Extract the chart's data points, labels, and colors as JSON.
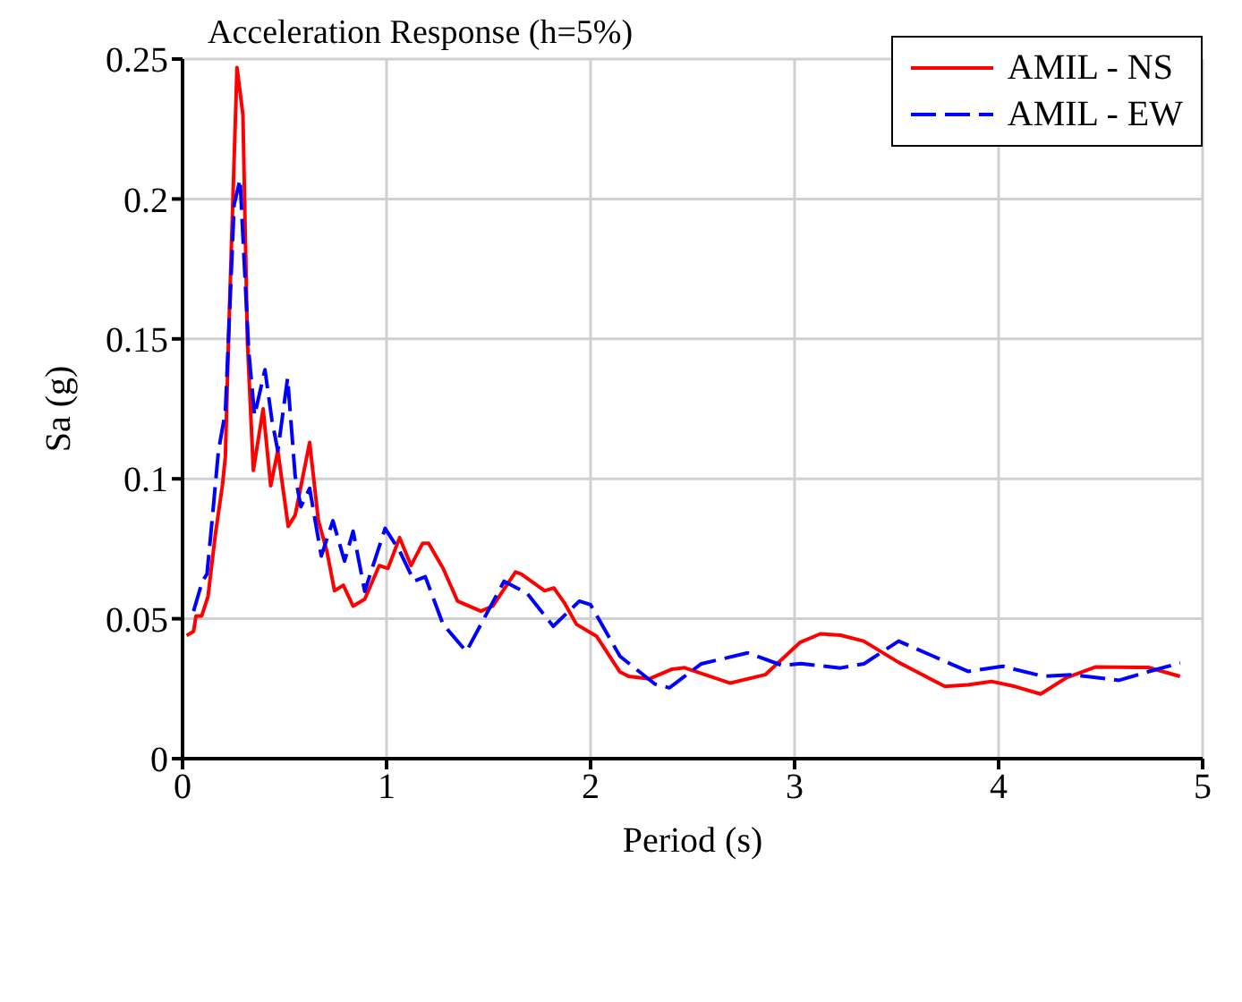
{
  "chart_data": {
    "type": "line",
    "title": "Acceleration Response (h=5%)",
    "xlabel": "Period (s)",
    "ylabel": "Sa (g)",
    "xlim": [
      0,
      5
    ],
    "xticks": [
      0,
      1,
      2,
      3,
      4,
      5
    ],
    "ylim": [
      0,
      0.25
    ],
    "yticks": [
      0,
      0.05,
      0.1,
      0.15,
      0.2,
      0.25
    ],
    "grid": true,
    "legend": "top right",
    "marker": "none",
    "series": [
      {
        "name": "AMIL - NS",
        "color": "#ff0000",
        "line_style": "solid",
        "x": [
          0.02,
          0.054,
          0.066,
          0.094,
          0.125,
          0.16,
          0.196,
          0.21,
          0.225,
          0.267,
          0.296,
          0.318,
          0.347,
          0.395,
          0.432,
          0.467,
          0.518,
          0.552,
          0.623,
          0.666,
          0.708,
          0.745,
          0.788,
          0.836,
          0.893,
          0.964,
          1.007,
          1.064,
          1.12,
          1.177,
          1.206,
          1.277,
          1.348,
          1.462,
          1.52,
          1.632,
          1.66,
          1.775,
          1.82,
          1.874,
          1.931,
          2.03,
          2.144,
          2.187,
          2.287,
          2.4,
          2.46,
          2.685,
          2.856,
          3.026,
          3.126,
          3.225,
          3.339,
          3.51,
          3.737,
          3.85,
          3.965,
          4.08,
          4.206,
          4.334,
          4.477,
          4.733,
          4.889
        ],
        "values": [
          0.044,
          0.0455,
          0.051,
          0.051,
          0.058,
          0.0796,
          0.098,
          0.108,
          0.149,
          0.247,
          0.23,
          0.149,
          0.103,
          0.125,
          0.0975,
          0.11,
          0.083,
          0.087,
          0.113,
          0.085,
          0.074,
          0.06,
          0.062,
          0.0545,
          0.057,
          0.069,
          0.068,
          0.079,
          0.069,
          0.077,
          0.077,
          0.068,
          0.0563,
          0.0527,
          0.0545,
          0.0667,
          0.066,
          0.06,
          0.061,
          0.0554,
          0.048,
          0.0437,
          0.031,
          0.0294,
          0.0285,
          0.032,
          0.0325,
          0.027,
          0.03,
          0.0415,
          0.0446,
          0.0441,
          0.042,
          0.0344,
          0.0258,
          0.0264,
          0.0276,
          0.0258,
          0.0231,
          0.029,
          0.0328,
          0.0326,
          0.0294
        ]
      },
      {
        "name": "AMIL - EW",
        "color": "#0000ff",
        "line_style": "dashed",
        "x": [
          0.054,
          0.097,
          0.12,
          0.148,
          0.176,
          0.21,
          0.253,
          0.282,
          0.324,
          0.353,
          0.404,
          0.438,
          0.467,
          0.515,
          0.552,
          0.58,
          0.623,
          0.68,
          0.737,
          0.794,
          0.836,
          0.893,
          0.993,
          1.064,
          1.135,
          1.19,
          1.277,
          1.391,
          1.576,
          1.69,
          1.817,
          1.945,
          2.0,
          2.144,
          2.315,
          2.386,
          2.543,
          2.77,
          2.94,
          3.03,
          3.225,
          3.34,
          3.51,
          3.68,
          3.85,
          4.02,
          4.22,
          4.36,
          4.59,
          4.73,
          4.89
        ],
        "values": [
          0.0527,
          0.0634,
          0.066,
          0.0876,
          0.11,
          0.124,
          0.198,
          0.207,
          0.146,
          0.1226,
          0.139,
          0.121,
          0.11,
          0.136,
          0.101,
          0.09,
          0.0966,
          0.0724,
          0.085,
          0.0706,
          0.0813,
          0.0598,
          0.0823,
          0.0742,
          0.0634,
          0.065,
          0.048,
          0.0383,
          0.0634,
          0.059,
          0.0473,
          0.0563,
          0.055,
          0.0366,
          0.0267,
          0.0253,
          0.0339,
          0.0378,
          0.0333,
          0.034,
          0.0324,
          0.0339,
          0.042,
          0.0366,
          0.0312,
          0.033,
          0.0294,
          0.03,
          0.028,
          0.031,
          0.0342
        ]
      }
    ]
  }
}
